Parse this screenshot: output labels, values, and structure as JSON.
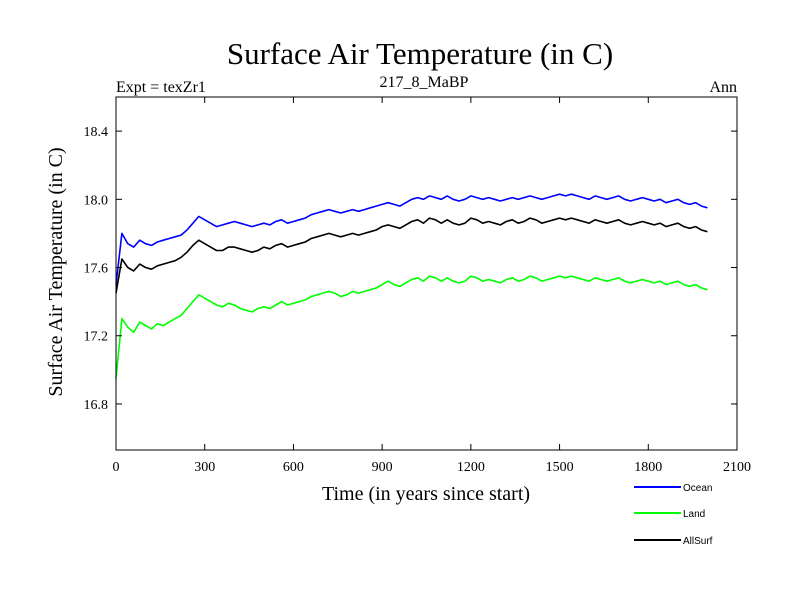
{
  "chart_data": {
    "type": "line",
    "title": "Surface Air Temperature (in C)",
    "subtitle": "217_8_MaBP",
    "experiment_label": "Expt = texZr1",
    "season_label": "Ann",
    "xlabel": "Time (in years since start)",
    "ylabel": "Surface Air Temperature (in C)",
    "xlim": [
      0,
      2100
    ],
    "ylim": [
      16.53,
      18.6
    ],
    "x_ticks": [
      0,
      300,
      600,
      900,
      1200,
      1500,
      1800,
      2100
    ],
    "x_tick_labels": [
      "0",
      "300",
      "600",
      "900",
      "1200",
      "1500",
      "1800",
      "2100"
    ],
    "y_ticks": [
      16.8,
      17.2,
      17.6,
      18.0,
      18.4
    ],
    "y_tick_labels": [
      "16.8",
      "17.2",
      "17.6",
      "18.0",
      "18.4"
    ],
    "x_sample_step": 20,
    "series": [
      {
        "name": "Ocean",
        "color": "#0000ff",
        "values": [
          17.5,
          17.8,
          17.74,
          17.72,
          17.76,
          17.74,
          17.73,
          17.75,
          17.76,
          17.77,
          17.78,
          17.79,
          17.82,
          17.86,
          17.9,
          17.88,
          17.86,
          17.84,
          17.85,
          17.86,
          17.87,
          17.86,
          17.85,
          17.84,
          17.85,
          17.86,
          17.85,
          17.87,
          17.88,
          17.86,
          17.87,
          17.88,
          17.89,
          17.91,
          17.92,
          17.93,
          17.94,
          17.93,
          17.92,
          17.93,
          17.94,
          17.93,
          17.94,
          17.95,
          17.96,
          17.97,
          17.98,
          17.97,
          17.96,
          17.98,
          18.0,
          18.01,
          18.0,
          18.02,
          18.01,
          18.0,
          18.02,
          18.0,
          17.99,
          18.0,
          18.02,
          18.01,
          18.0,
          18.01,
          18.0,
          17.99,
          18.0,
          18.01,
          18.0,
          18.01,
          18.02,
          18.01,
          18.0,
          18.01,
          18.02,
          18.03,
          18.02,
          18.03,
          18.02,
          18.01,
          18.0,
          18.02,
          18.01,
          18.0,
          18.01,
          18.02,
          18.0,
          17.99,
          18.0,
          18.01,
          18.0,
          17.99,
          18.0,
          17.98,
          17.99,
          18.0,
          17.98,
          17.97,
          17.98,
          17.96,
          17.95
        ]
      },
      {
        "name": "Land",
        "color": "#00ff00",
        "values": [
          16.95,
          17.3,
          17.25,
          17.22,
          17.28,
          17.26,
          17.24,
          17.27,
          17.26,
          17.28,
          17.3,
          17.32,
          17.36,
          17.4,
          17.44,
          17.42,
          17.4,
          17.38,
          17.37,
          17.39,
          17.38,
          17.36,
          17.35,
          17.34,
          17.36,
          17.37,
          17.36,
          17.38,
          17.4,
          17.38,
          17.39,
          17.4,
          17.41,
          17.43,
          17.44,
          17.45,
          17.46,
          17.45,
          17.43,
          17.44,
          17.46,
          17.45,
          17.46,
          17.47,
          17.48,
          17.5,
          17.52,
          17.5,
          17.49,
          17.51,
          17.53,
          17.54,
          17.52,
          17.55,
          17.54,
          17.52,
          17.54,
          17.52,
          17.51,
          17.52,
          17.55,
          17.54,
          17.52,
          17.53,
          17.52,
          17.51,
          17.53,
          17.54,
          17.52,
          17.53,
          17.55,
          17.54,
          17.52,
          17.53,
          17.54,
          17.55,
          17.54,
          17.55,
          17.54,
          17.53,
          17.52,
          17.54,
          17.53,
          17.52,
          17.53,
          17.54,
          17.52,
          17.51,
          17.52,
          17.53,
          17.52,
          17.51,
          17.52,
          17.5,
          17.51,
          17.52,
          17.5,
          17.49,
          17.5,
          17.48,
          17.47
        ]
      },
      {
        "name": "AllSurf",
        "color": "#000000",
        "values": [
          17.45,
          17.65,
          17.6,
          17.58,
          17.62,
          17.6,
          17.59,
          17.61,
          17.62,
          17.63,
          17.64,
          17.66,
          17.69,
          17.73,
          17.76,
          17.74,
          17.72,
          17.7,
          17.7,
          17.72,
          17.72,
          17.71,
          17.7,
          17.69,
          17.7,
          17.72,
          17.71,
          17.73,
          17.74,
          17.72,
          17.73,
          17.74,
          17.75,
          17.77,
          17.78,
          17.79,
          17.8,
          17.79,
          17.78,
          17.79,
          17.8,
          17.79,
          17.8,
          17.81,
          17.82,
          17.84,
          17.85,
          17.84,
          17.83,
          17.85,
          17.87,
          17.88,
          17.86,
          17.89,
          17.88,
          17.86,
          17.88,
          17.86,
          17.85,
          17.86,
          17.89,
          17.88,
          17.86,
          17.87,
          17.86,
          17.85,
          17.87,
          17.88,
          17.86,
          17.87,
          17.89,
          17.88,
          17.86,
          17.87,
          17.88,
          17.89,
          17.88,
          17.89,
          17.88,
          17.87,
          17.86,
          17.88,
          17.87,
          17.86,
          17.87,
          17.88,
          17.86,
          17.85,
          17.86,
          17.87,
          17.86,
          17.85,
          17.86,
          17.84,
          17.85,
          17.86,
          17.84,
          17.83,
          17.84,
          17.82,
          17.81
        ]
      }
    ],
    "legend_position": "bottom-right, below plot"
  }
}
